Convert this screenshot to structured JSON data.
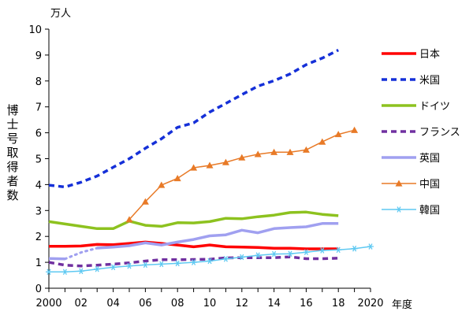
{
  "chart_data": {
    "type": "line",
    "ylabel": "博士号取得者数",
    "y_unit": "万人",
    "x_unit": "年度",
    "xlim": [
      2000,
      2020
    ],
    "ylim": [
      0,
      10
    ],
    "x_tick_labels": [
      "2000",
      "02",
      "04",
      "06",
      "08",
      "10",
      "12",
      "14",
      "16",
      "18",
      "2020"
    ],
    "y_tick_labels": [
      "0",
      "1",
      "2",
      "3",
      "4",
      "5",
      "6",
      "7",
      "8",
      "9",
      "10"
    ],
    "legend_position": "right",
    "series": [
      {
        "name": "日本",
        "color": "#ff0000",
        "style": "solid",
        "marker": "none",
        "points": [
          [
            2000,
            1.62
          ],
          [
            2001,
            1.62
          ],
          [
            2002,
            1.63
          ],
          [
            2003,
            1.69
          ],
          [
            2004,
            1.68
          ],
          [
            2005,
            1.73
          ],
          [
            2006,
            1.78
          ],
          [
            2007,
            1.73
          ],
          [
            2008,
            1.67
          ],
          [
            2009,
            1.6
          ],
          [
            2010,
            1.67
          ],
          [
            2011,
            1.6
          ],
          [
            2012,
            1.59
          ],
          [
            2013,
            1.57
          ],
          [
            2014,
            1.54
          ],
          [
            2015,
            1.54
          ],
          [
            2016,
            1.52
          ],
          [
            2017,
            1.52
          ],
          [
            2018,
            1.52
          ]
        ]
      },
      {
        "name": "米国",
        "color": "#1530d8",
        "style": "dashed",
        "marker": "none",
        "points": [
          [
            2000,
            3.98
          ],
          [
            2001,
            3.91
          ],
          [
            2002,
            4.09
          ],
          [
            2003,
            4.33
          ],
          [
            2004,
            4.67
          ],
          [
            2005,
            5.0
          ],
          [
            2006,
            5.4
          ],
          [
            2007,
            5.77
          ],
          [
            2008,
            6.21
          ],
          [
            2009,
            6.38
          ],
          [
            2010,
            6.8
          ],
          [
            2011,
            7.13
          ],
          [
            2012,
            7.47
          ],
          [
            2013,
            7.8
          ],
          [
            2014,
            8.01
          ],
          [
            2015,
            8.27
          ],
          [
            2016,
            8.63
          ],
          [
            2017,
            8.88
          ],
          [
            2018,
            9.19
          ]
        ]
      },
      {
        "name": "ドイツ",
        "color": "#8dc21f",
        "style": "solid",
        "marker": "none",
        "points": [
          [
            2000,
            2.57
          ],
          [
            2001,
            2.48
          ],
          [
            2002,
            2.39
          ],
          [
            2003,
            2.3
          ],
          [
            2004,
            2.3
          ],
          [
            2005,
            2.59
          ],
          [
            2006,
            2.43
          ],
          [
            2007,
            2.39
          ],
          [
            2008,
            2.53
          ],
          [
            2009,
            2.52
          ],
          [
            2010,
            2.57
          ],
          [
            2011,
            2.7
          ],
          [
            2012,
            2.68
          ],
          [
            2013,
            2.76
          ],
          [
            2014,
            2.82
          ],
          [
            2015,
            2.92
          ],
          [
            2016,
            2.94
          ],
          [
            2017,
            2.85
          ],
          [
            2018,
            2.8
          ]
        ]
      },
      {
        "name": "フランス",
        "color": "#7030a0",
        "style": "dashed",
        "marker": "none",
        "points": [
          [
            2000,
            1.0
          ],
          [
            2001,
            0.89
          ],
          [
            2002,
            0.86
          ],
          [
            2003,
            0.89
          ],
          [
            2004,
            0.93
          ],
          [
            2005,
            0.98
          ],
          [
            2006,
            1.05
          ],
          [
            2007,
            1.1
          ],
          [
            2008,
            1.1
          ],
          [
            2009,
            1.11
          ],
          [
            2010,
            1.12
          ],
          [
            2011,
            1.17
          ],
          [
            2012,
            1.18
          ],
          [
            2013,
            1.18
          ],
          [
            2014,
            1.18
          ],
          [
            2015,
            1.21
          ],
          [
            2016,
            1.14
          ],
          [
            2017,
            1.14
          ],
          [
            2018,
            1.16
          ]
        ]
      },
      {
        "name": "英国",
        "color": "#a0a0f0",
        "style": "solid",
        "marker": "none",
        "dotted_segment": [
          [
            2001,
            1.13
          ],
          [
            2002,
            1.38
          ],
          [
            2003,
            1.55
          ]
        ],
        "points": [
          [
            2000,
            1.15
          ],
          [
            2001,
            1.13
          ],
          [
            2003,
            1.55
          ],
          [
            2004,
            1.59
          ],
          [
            2005,
            1.64
          ],
          [
            2006,
            1.75
          ],
          [
            2007,
            1.67
          ],
          [
            2008,
            1.78
          ],
          [
            2009,
            1.88
          ],
          [
            2010,
            2.02
          ],
          [
            2011,
            2.06
          ],
          [
            2012,
            2.24
          ],
          [
            2013,
            2.14
          ],
          [
            2014,
            2.3
          ],
          [
            2015,
            2.34
          ],
          [
            2016,
            2.37
          ],
          [
            2017,
            2.5
          ],
          [
            2018,
            2.5
          ]
        ]
      },
      {
        "name": "中国",
        "color": "#e87a27",
        "style": "solid",
        "marker": "triangle",
        "points": [
          [
            2005,
            2.65
          ],
          [
            2006,
            3.34
          ],
          [
            2007,
            3.98
          ],
          [
            2008,
            4.24
          ],
          [
            2009,
            4.65
          ],
          [
            2010,
            4.74
          ],
          [
            2011,
            4.86
          ],
          [
            2012,
            5.04
          ],
          [
            2013,
            5.17
          ],
          [
            2014,
            5.25
          ],
          [
            2015,
            5.25
          ],
          [
            2016,
            5.34
          ],
          [
            2017,
            5.65
          ],
          [
            2018,
            5.94
          ],
          [
            2019,
            6.1
          ]
        ]
      },
      {
        "name": "韓国",
        "color": "#5fc9f2",
        "style": "solid",
        "marker": "star",
        "points": [
          [
            2000,
            0.63
          ],
          [
            2001,
            0.63
          ],
          [
            2002,
            0.66
          ],
          [
            2003,
            0.74
          ],
          [
            2004,
            0.81
          ],
          [
            2005,
            0.86
          ],
          [
            2006,
            0.9
          ],
          [
            2007,
            0.93
          ],
          [
            2008,
            0.96
          ],
          [
            2009,
            1.0
          ],
          [
            2010,
            1.05
          ],
          [
            2011,
            1.13
          ],
          [
            2012,
            1.2
          ],
          [
            2013,
            1.27
          ],
          [
            2014,
            1.32
          ],
          [
            2015,
            1.33
          ],
          [
            2016,
            1.39
          ],
          [
            2017,
            1.46
          ],
          [
            2018,
            1.48
          ],
          [
            2019,
            1.53
          ],
          [
            2020,
            1.61
          ]
        ]
      }
    ]
  }
}
